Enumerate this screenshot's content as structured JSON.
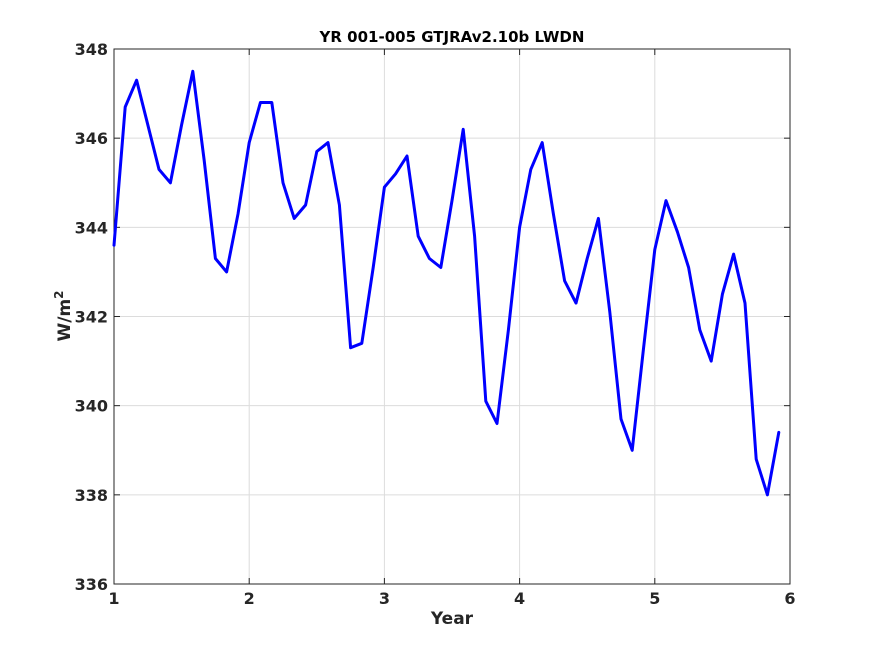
{
  "chart_data": {
    "type": "line",
    "title": "YR 001-005 GTJRAv2.10b LWDN",
    "xlabel": "Year",
    "ylabel": "W/m",
    "ylabel_superscript": "2",
    "xlim": [
      1,
      6
    ],
    "ylim": [
      336,
      348
    ],
    "xticks": [
      1,
      2,
      3,
      4,
      5,
      6
    ],
    "yticks": [
      336,
      338,
      340,
      342,
      344,
      346,
      348
    ],
    "grid": true,
    "series_color": "#0000ff",
    "series": [
      {
        "x": [
          1.0,
          1.083,
          1.167,
          1.25,
          1.333,
          1.417,
          1.5,
          1.583,
          1.667,
          1.75,
          1.833,
          1.917,
          2.0,
          2.083,
          2.167,
          2.25,
          2.333,
          2.417,
          2.5,
          2.583,
          2.667,
          2.75,
          2.833,
          2.917,
          3.0,
          3.083,
          3.167,
          3.25,
          3.333,
          3.417,
          3.5,
          3.583,
          3.667,
          3.75,
          3.833,
          3.917,
          4.0,
          4.083,
          4.167,
          4.25,
          4.333,
          4.417,
          4.5,
          4.583,
          4.667,
          4.75,
          4.833,
          4.917,
          5.0,
          5.083,
          5.167,
          5.25,
          5.333,
          5.417,
          5.5,
          5.583,
          5.667,
          5.75,
          5.833,
          5.917
        ],
        "values": [
          343.6,
          346.7,
          347.3,
          346.3,
          345.3,
          345.0,
          346.3,
          347.5,
          345.5,
          343.3,
          343.0,
          344.3,
          345.9,
          346.8,
          346.8,
          345.0,
          344.2,
          344.5,
          345.7,
          345.9,
          344.5,
          341.3,
          341.4,
          343.1,
          344.9,
          345.2,
          345.6,
          343.8,
          343.3,
          343.1,
          344.6,
          346.2,
          343.8,
          340.1,
          339.6,
          341.7,
          344.0,
          345.3,
          345.9,
          344.3,
          342.8,
          342.3,
          343.3,
          344.2,
          342.1,
          339.7,
          339.0,
          341.3,
          343.5,
          344.6,
          343.9,
          343.1,
          341.7,
          341.0,
          342.5,
          343.4,
          342.3,
          338.8,
          338.0,
          339.4
        ]
      }
    ]
  }
}
